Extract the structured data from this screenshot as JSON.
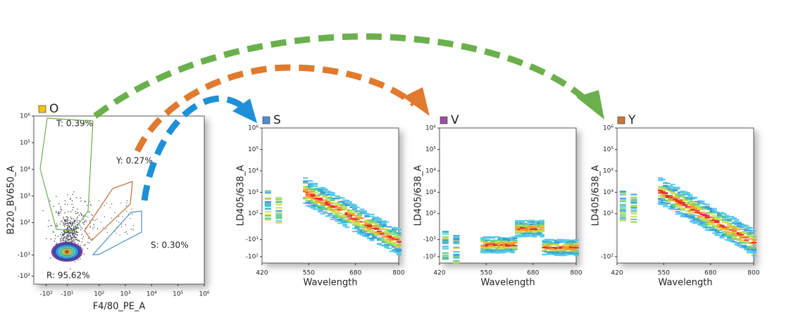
{
  "chart_data": [
    {
      "type": "scatter",
      "title": "O",
      "color": "#f5c400",
      "x_label": "F4/80_PE_A",
      "y_label": "B220_BV650_A",
      "scale": "biex",
      "xlim": [
        -300,
        1000000
      ],
      "ylim": [
        -200,
        1000000
      ],
      "xticks": [
        {
          "value": -100,
          "label": "-10²"
        },
        {
          "value": -10,
          "label": "-10¹"
        },
        {
          "value": 100,
          "label": "10²"
        },
        {
          "value": 1000,
          "label": "10³"
        },
        {
          "value": 10000,
          "label": "10⁴"
        },
        {
          "value": 100000,
          "label": "10⁵"
        },
        {
          "value": 1000000,
          "label": "10⁶"
        }
      ],
      "yticks": [
        {
          "value": -100,
          "label": "-10²"
        },
        {
          "value": -10,
          "label": "-10¹"
        },
        {
          "value": 100,
          "label": "10²"
        },
        {
          "value": 1000,
          "label": "10³"
        },
        {
          "value": 10000,
          "label": "10⁴"
        },
        {
          "value": 100000,
          "label": "10⁵"
        },
        {
          "value": 1000000,
          "label": "10⁶"
        }
      ],
      "gates": [
        {
          "label": "T: 0.39%",
          "color": "#6ab04c"
        },
        {
          "label": "Y: 0.27%",
          "color": "#c0703a"
        },
        {
          "label": "S: 0.30%",
          "color": "#4a90c8"
        },
        {
          "label": "R: 95.62%",
          "color": "#a040a0"
        }
      ]
    },
    {
      "type": "heatmap",
      "title": "S",
      "color": "#4f8fc8",
      "x_label": "Wavelength",
      "y_label": "LD405/638_A",
      "scale": "biex",
      "xlim": [
        420,
        800
      ],
      "xticks": [
        420,
        550,
        680,
        800
      ],
      "ylim": [
        -200,
        1000000
      ],
      "yticks": [
        {
          "value": -100,
          "label": "-10²"
        },
        {
          "value": -10,
          "label": "-10¹"
        },
        {
          "value": 100,
          "label": "10²"
        },
        {
          "value": 1000,
          "label": "10³"
        },
        {
          "value": 10000,
          "label": "10⁴"
        },
        {
          "value": 100000,
          "label": "10⁵"
        },
        {
          "value": 1000000,
          "label": "10⁶"
        }
      ]
    },
    {
      "type": "heatmap",
      "title": "V",
      "color": "#9b4fa0",
      "x_label": "Wavelength",
      "y_label": "LD405/638_A",
      "scale": "biex",
      "xlim": [
        420,
        800
      ],
      "xticks": [
        420,
        550,
        680,
        800
      ],
      "ylim": [
        -200,
        1000000
      ],
      "yticks": [
        {
          "value": -100,
          "label": "-10²"
        },
        {
          "value": -10,
          "label": "-10¹"
        },
        {
          "value": 100,
          "label": "10²"
        },
        {
          "value": 1000,
          "label": "10³"
        },
        {
          "value": 10000,
          "label": "10⁴"
        },
        {
          "value": 100000,
          "label": "10⁵"
        },
        {
          "value": 1000000,
          "label": "10⁶"
        }
      ]
    },
    {
      "type": "heatmap",
      "title": "Y",
      "color": "#c8763a",
      "x_label": "Wavelength",
      "y_label": "LD405/638_A",
      "scale": "biex",
      "xlim": [
        420,
        800
      ],
      "xticks": [
        420,
        550,
        680,
        800
      ],
      "ylim": [
        -200,
        1000000
      ],
      "yticks": [
        {
          "value": -100,
          "label": "-10²"
        },
        {
          "value": 100,
          "label": "10²"
        },
        {
          "value": 1000,
          "label": "10³"
        },
        {
          "value": 10000,
          "label": "10⁴"
        },
        {
          "value": 100000,
          "label": "10⁵"
        },
        {
          "value": 1000000,
          "label": "10⁶"
        }
      ]
    }
  ]
}
